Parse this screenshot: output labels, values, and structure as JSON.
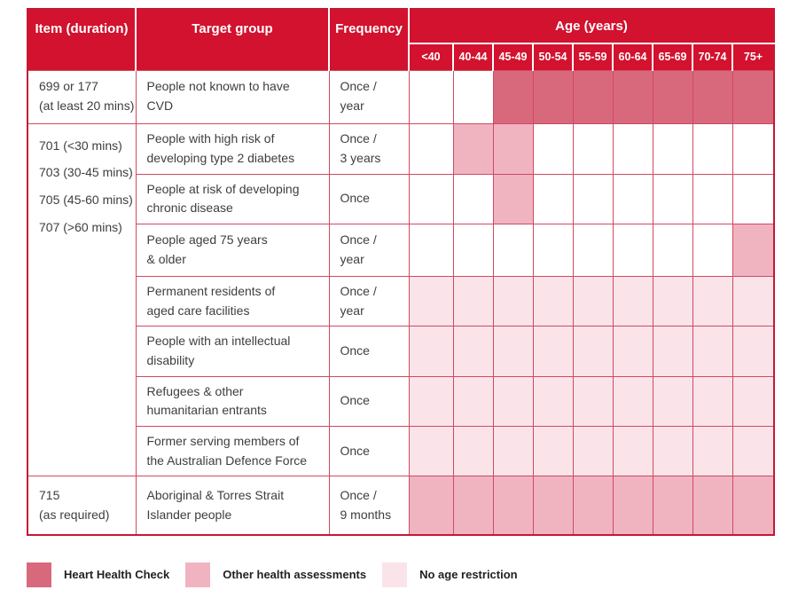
{
  "header": {
    "item": "Item (duration)",
    "target": "Target group",
    "frequency": "Frequency",
    "age": "Age (years)",
    "age_cols": [
      "<40",
      "40-44",
      "45-49",
      "50-54",
      "55-59",
      "60-64",
      "65-69",
      "70-74",
      "75+"
    ]
  },
  "rows": [
    {
      "item_lines": [
        "699 or 177",
        "(at least 20 mins)"
      ],
      "target_lines": [
        "People not known to have",
        "CVD"
      ],
      "frequency_lines": [
        "Once /",
        "year"
      ],
      "cells": [
        "",
        "",
        "hhc",
        "hhc",
        "hhc",
        "hhc",
        "hhc",
        "hhc",
        "hhc"
      ]
    },
    {
      "item_lines": [
        "701 (<30 mins)",
        "703 (30-45 mins)",
        "705 (45-60 mins)",
        "707 (>60 mins)"
      ],
      "target_lines": [
        "People with high risk of",
        "developing type 2 diabetes"
      ],
      "frequency_lines": [
        "Once /",
        "3 years"
      ],
      "cells": [
        "",
        "other",
        "other",
        "",
        "",
        "",
        "",
        "",
        ""
      ]
    },
    {
      "target_lines": [
        "People at risk of developing",
        "chronic disease"
      ],
      "frequency_lines": [
        "Once"
      ],
      "cells": [
        "",
        "",
        "other",
        "",
        "",
        "",
        "",
        "",
        ""
      ]
    },
    {
      "target_lines": [
        "People aged 75 years",
        "& older"
      ],
      "frequency_lines": [
        "Once /",
        "year"
      ],
      "cells": [
        "",
        "",
        "",
        "",
        "",
        "",
        "",
        "",
        "other"
      ]
    },
    {
      "target_lines": [
        "Permanent residents of",
        "aged care facilities"
      ],
      "frequency_lines": [
        "Once /",
        "year"
      ],
      "cells": [
        "light",
        "light",
        "light",
        "light",
        "light",
        "light",
        "light",
        "light",
        "light"
      ]
    },
    {
      "target_lines": [
        "People with an intellectual",
        "disability"
      ],
      "frequency_lines": [
        "Once"
      ],
      "cells": [
        "light",
        "light",
        "light",
        "light",
        "light",
        "light",
        "light",
        "light",
        "light"
      ]
    },
    {
      "target_lines": [
        "Refugees & other",
        "humanitarian entrants"
      ],
      "frequency_lines": [
        "Once"
      ],
      "cells": [
        "light",
        "light",
        "light",
        "light",
        "light",
        "light",
        "light",
        "light",
        "light"
      ]
    },
    {
      "target_lines": [
        "Former serving members of",
        "the Australian Defence Force"
      ],
      "frequency_lines": [
        "Once"
      ],
      "cells": [
        "light",
        "light",
        "light",
        "light",
        "light",
        "light",
        "light",
        "light",
        "light"
      ]
    },
    {
      "item_lines": [
        "715",
        "(as required)"
      ],
      "target_lines": [
        "Aboriginal & Torres Strait",
        "Islander people"
      ],
      "frequency_lines": [
        "Once /",
        "9 months"
      ],
      "cells": [
        "other",
        "other",
        "other",
        "other",
        "other",
        "other",
        "other",
        "other",
        "other"
      ]
    }
  ],
  "legend": [
    {
      "key": "hhc",
      "label": "Heart Health Check"
    },
    {
      "key": "other",
      "label": "Other health assessments"
    },
    {
      "key": "light",
      "label": "No age restriction"
    }
  ],
  "colors": {
    "header-red": "#d2122e",
    "hhc": "#d8697c",
    "other": "#f0b4c1",
    "light": "#fae4ea",
    "border-inner": "#cf4a60",
    "border-outer": "#c41836",
    "text": "#3e3e3d"
  }
}
